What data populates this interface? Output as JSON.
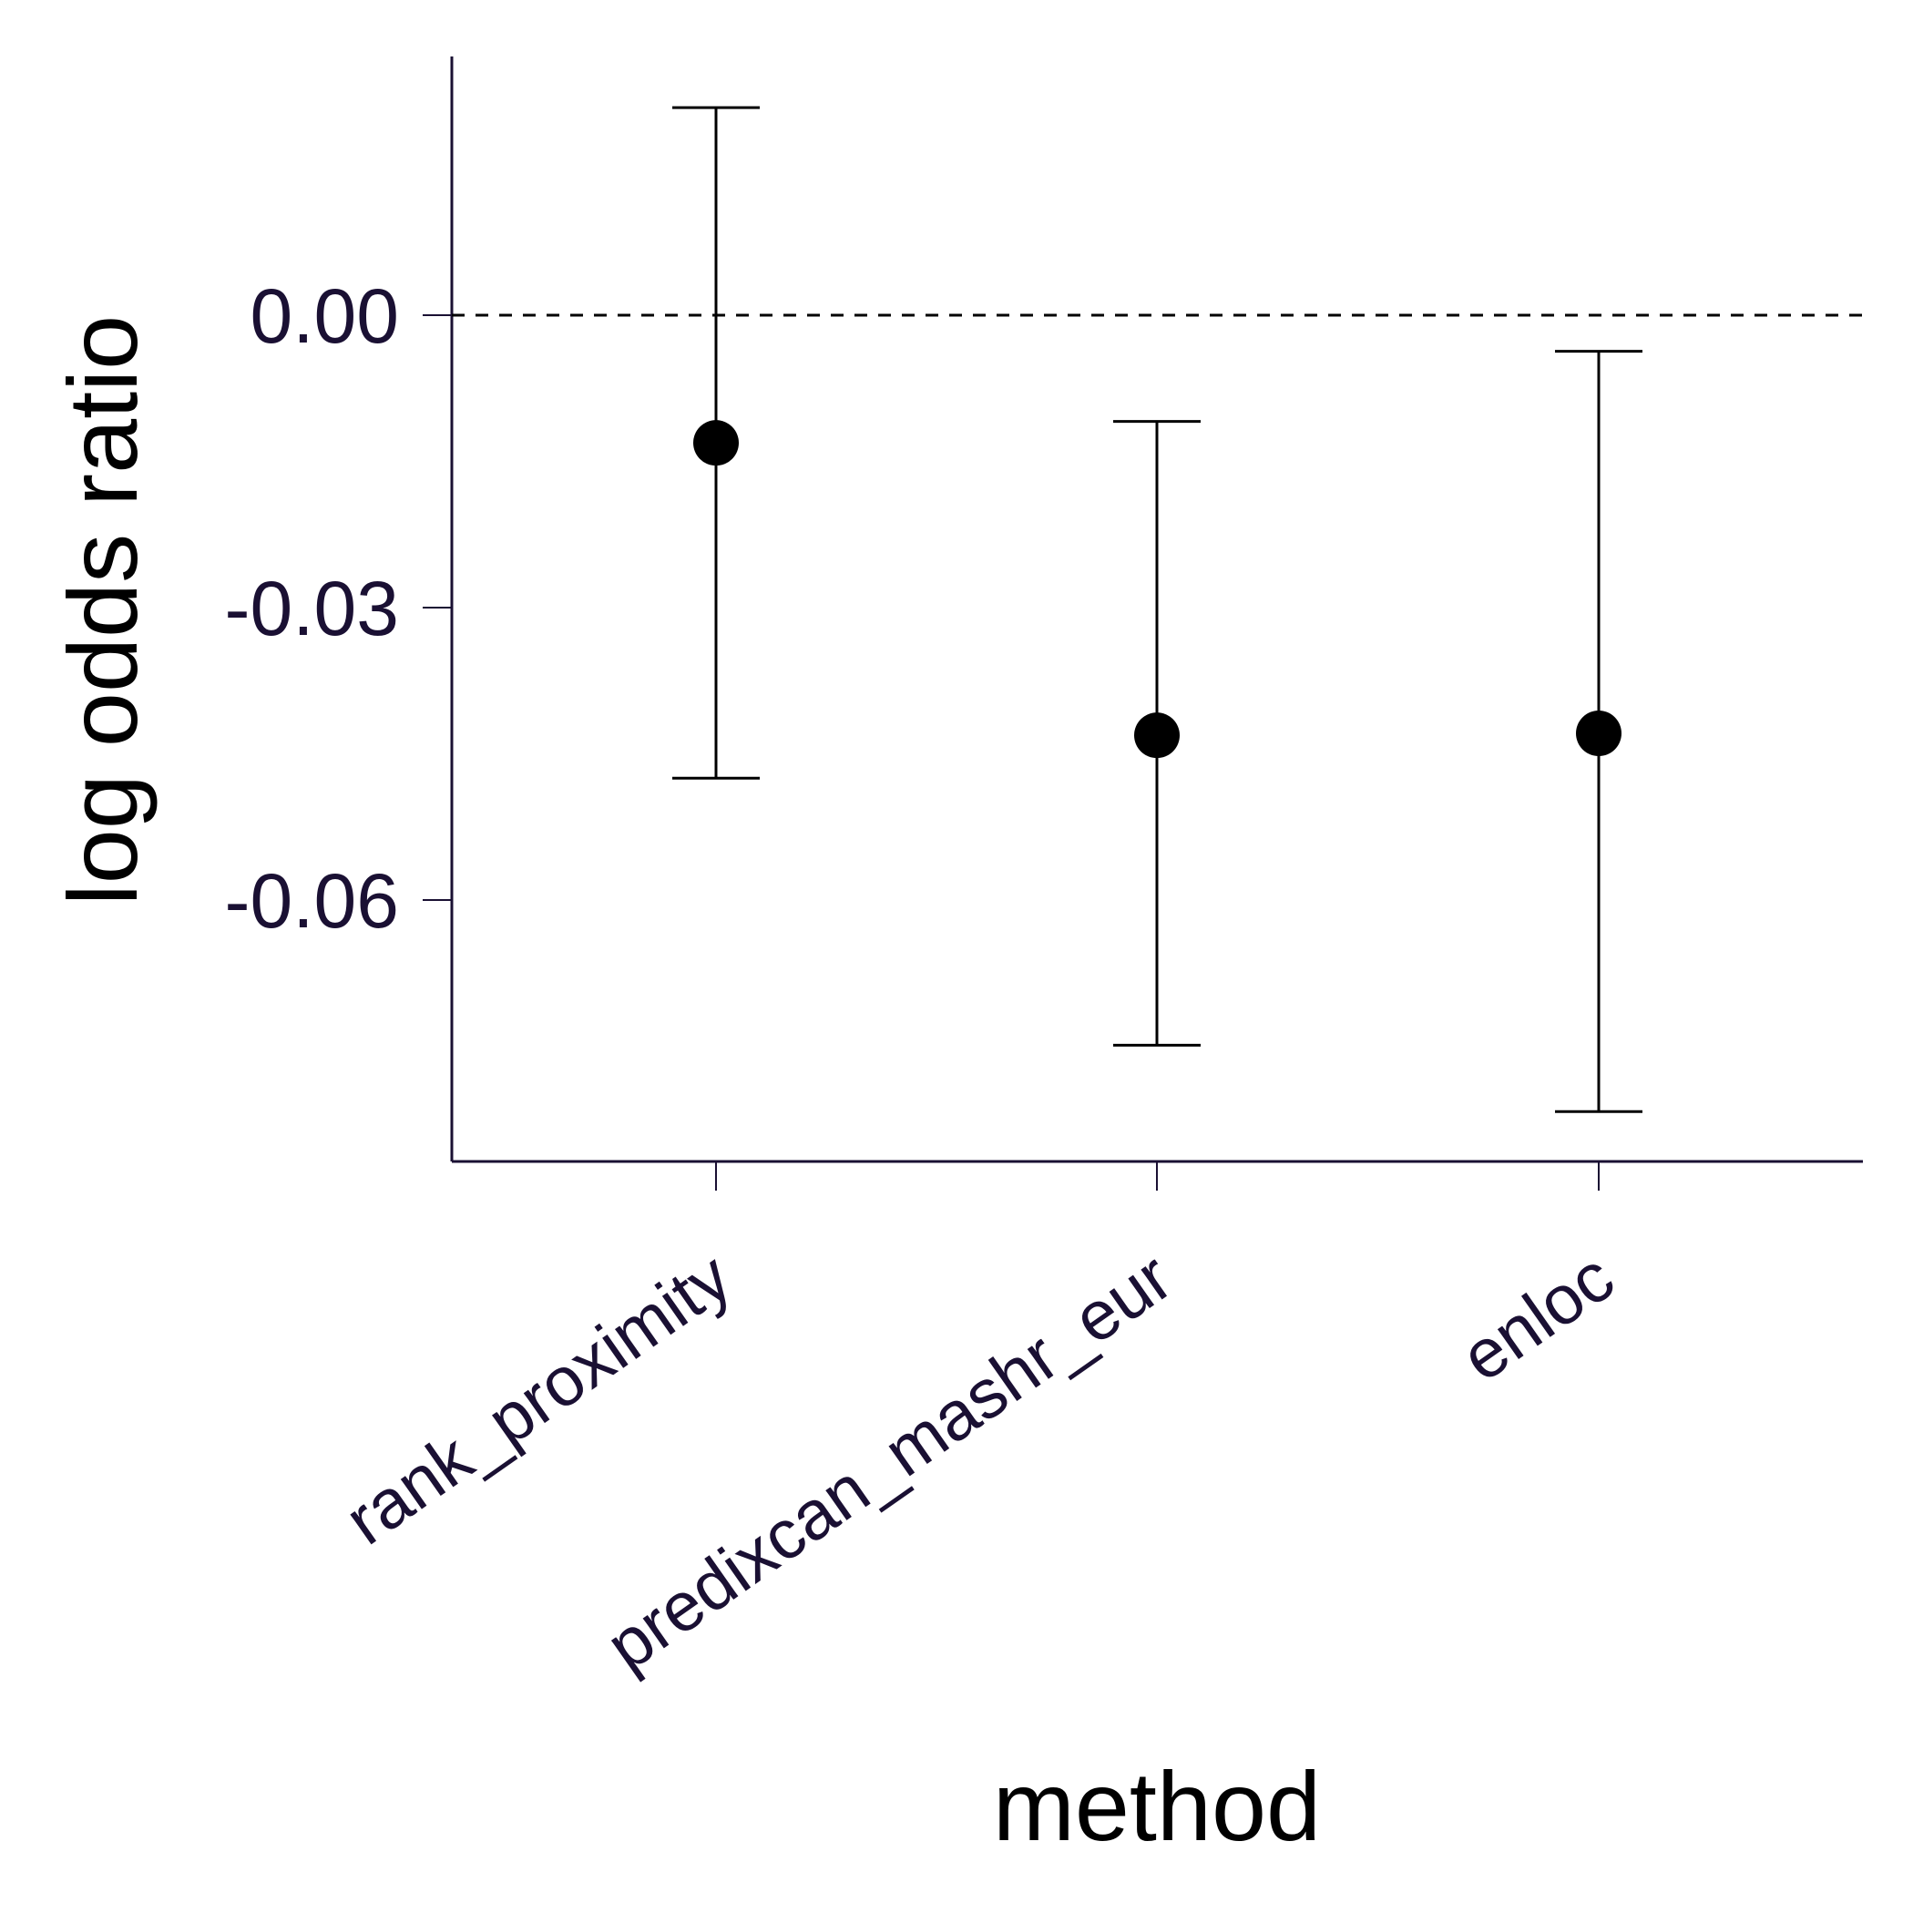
{
  "chart_data": {
    "type": "errorbar",
    "title": "",
    "xlabel": "method",
    "ylabel": "log odds ratio",
    "categories": [
      "rank_proximity",
      "predixcan_mashr_eur",
      "enloc"
    ],
    "series": [
      {
        "name": "log odds ratio",
        "estimate": [
          -0.0131,
          -0.0431,
          -0.0429
        ],
        "lower": [
          -0.0475,
          -0.0749,
          -0.0817
        ],
        "upper": [
          0.0213,
          -0.0109,
          -0.0037
        ]
      }
    ],
    "yticks": [
      0.0,
      -0.03,
      -0.06
    ],
    "ytick_labels": [
      "0.00",
      "-0.03",
      "-0.06"
    ],
    "ylim": [
      -0.0869,
      0.0265
    ],
    "reference_line": 0.0,
    "colors": {
      "axis": "#1a1033",
      "marks": "#000000",
      "text": "#1a1033"
    }
  }
}
